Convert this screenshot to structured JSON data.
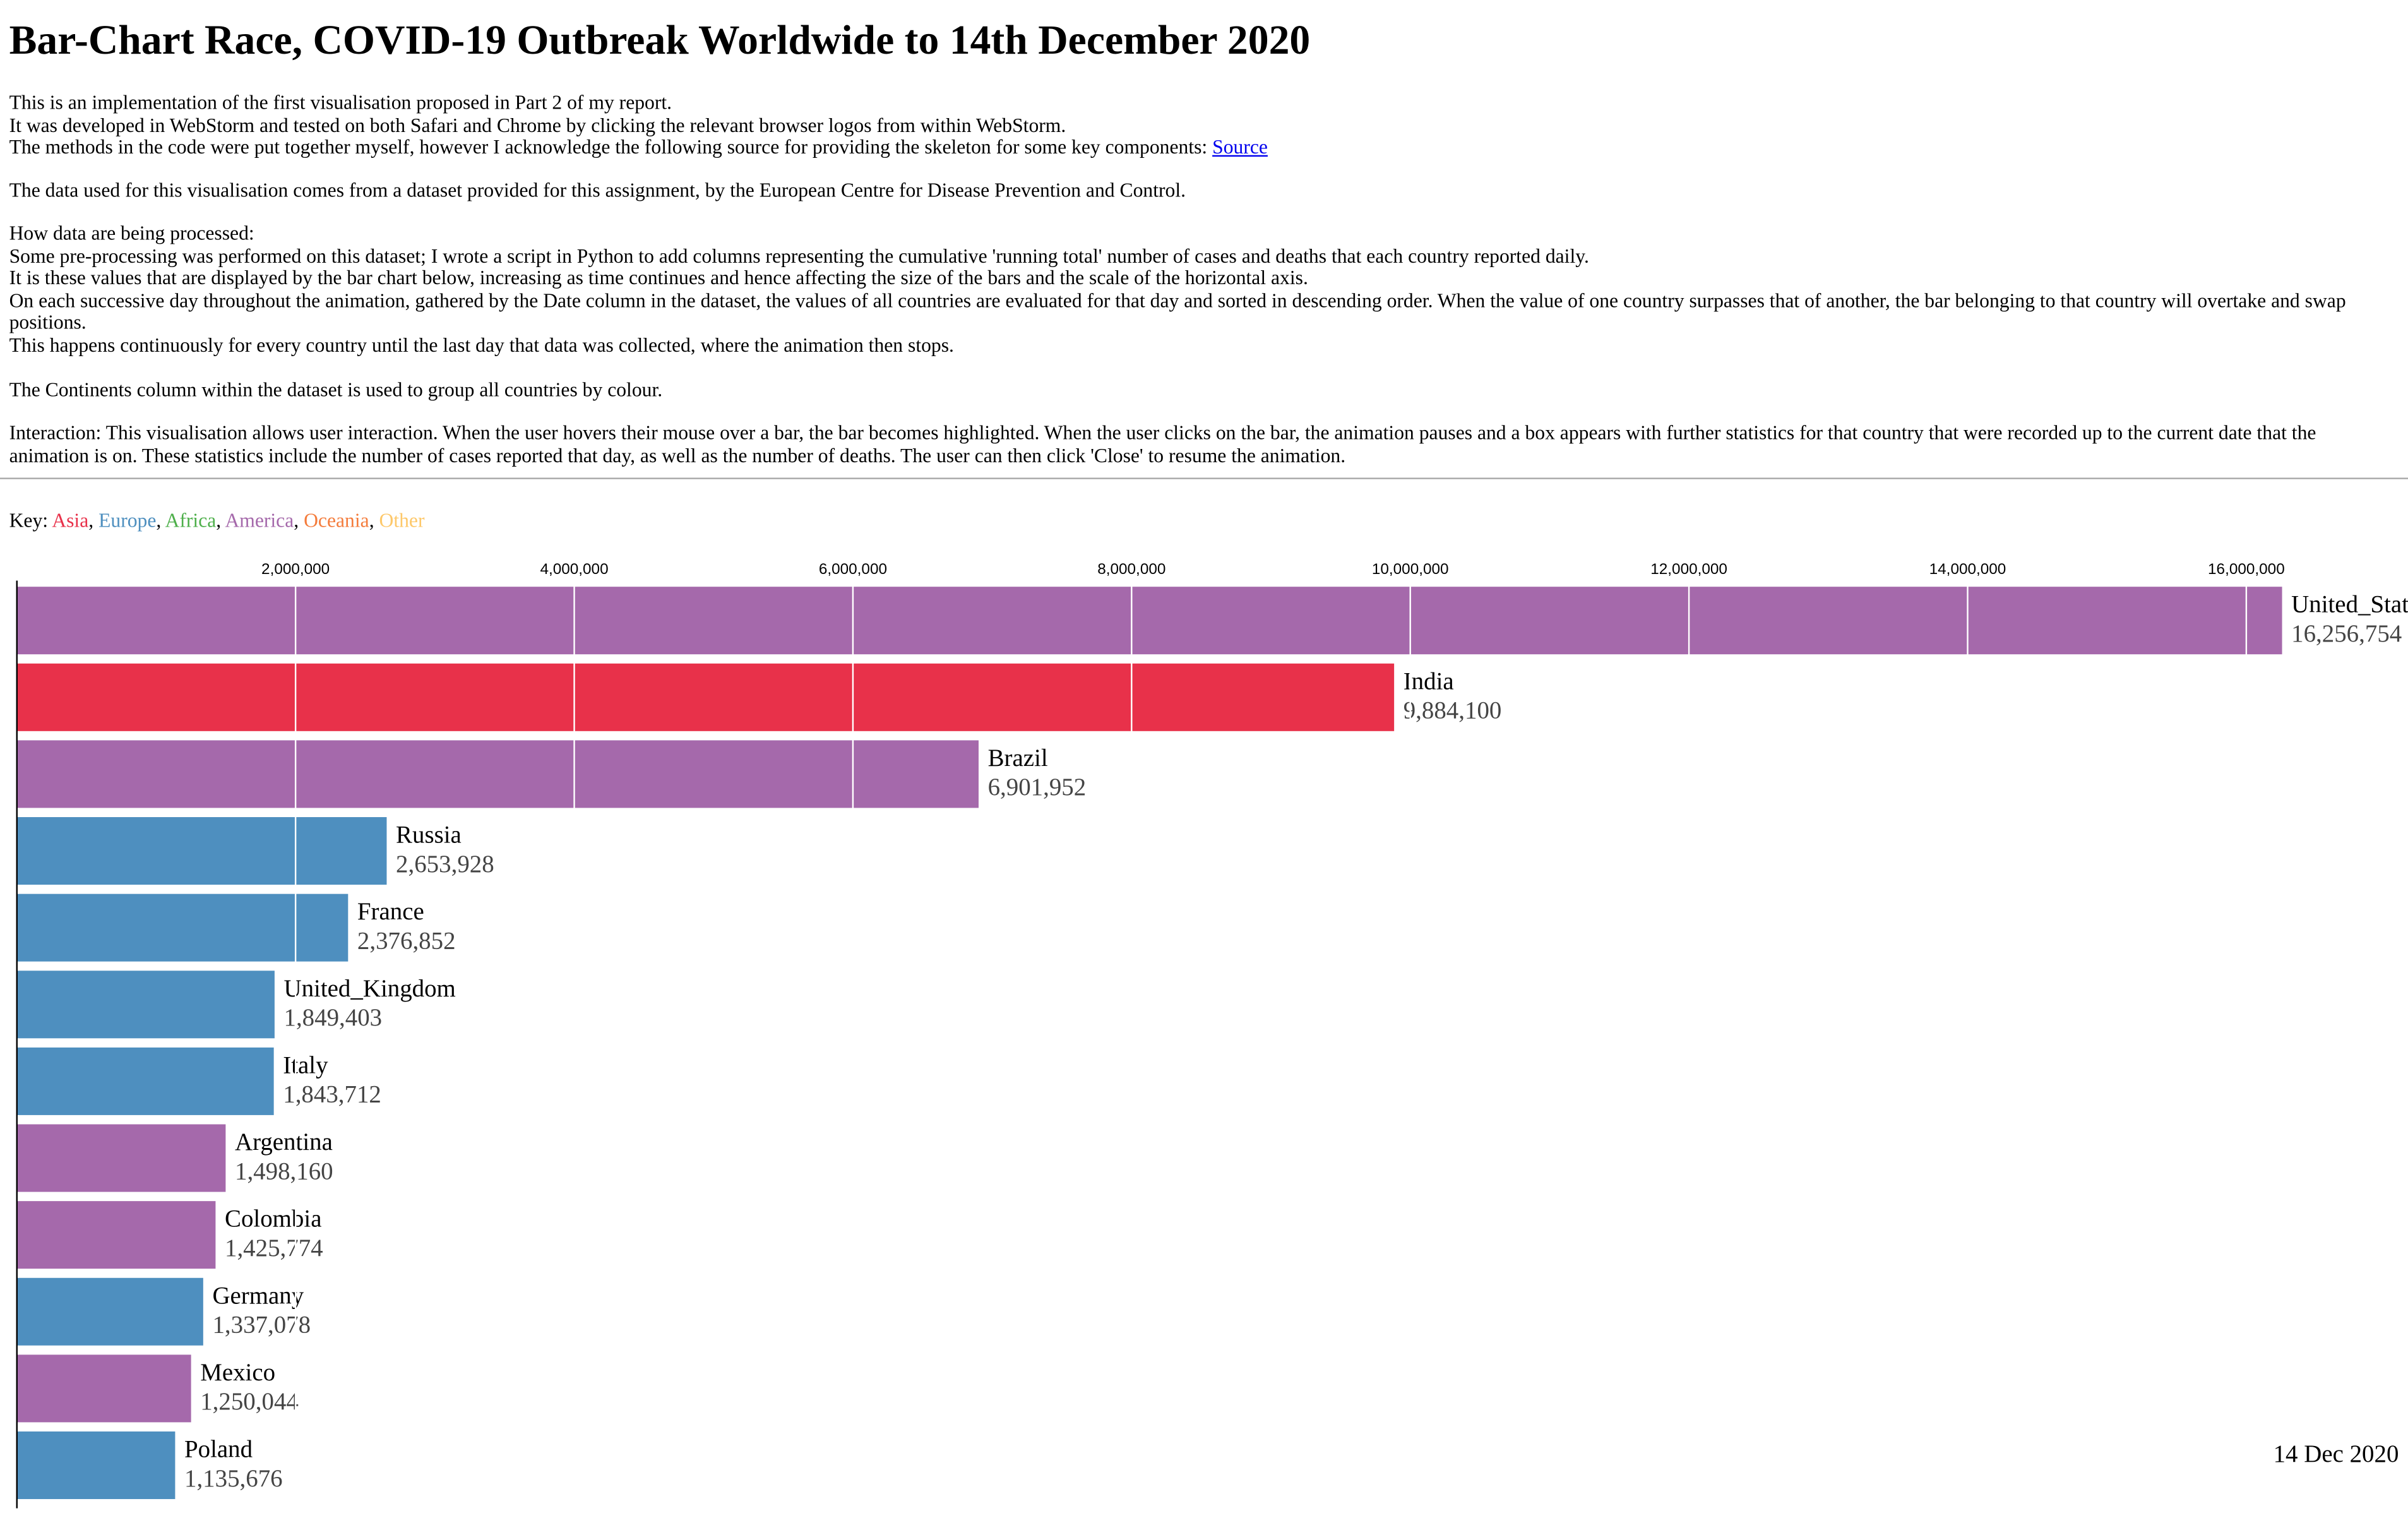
{
  "title": "Bar-Chart Race, COVID-19 Outbreak Worldwide to 14th December 2020",
  "intro": {
    "lines": [
      "This is an implementation of the first visualisation proposed in Part 2 of my report.",
      "It was developed in WebStorm and tested on both Safari and Chrome by clicking the relevant browser logos from within WebStorm.",
      "The methods in the code were put together myself, however I acknowledge the following source for providing the skeleton for some key components:"
    ],
    "link": "Source"
  },
  "data_note": "The data used for this visualisation comes from a dataset provided for this assignment, by the European Centre for Disease Prevention and Control.",
  "processing": {
    "lines": [
      "How data are being processed:",
      "Some pre-processing was performed on this dataset; I wrote a script in Python to add columns representing the cumulative 'running total' number of cases and deaths that each country reported daily.",
      "It is these values that are displayed by the bar chart below, increasing as time continues and hence affecting the size of the bars and the scale of the horizontal axis.",
      "On each successive day throughout the animation, gathered by the Date column in the dataset, the values of all countries are evaluated for that day and sorted in descending order. When the value of one country surpasses that of another, the bar belonging to that country will overtake and swap positions.",
      "This happens continuously for every country until the last day that data was collected, where the animation then stops."
    ]
  },
  "continents_note": "The Continents column within the dataset is used to group all countries by colour.",
  "interaction_note": "Interaction: This visualisation allows user interaction. When the user hovers their mouse over a bar, the bar becomes highlighted. When the user clicks on the bar, the animation pauses and a box appears with further statistics for that country that were recorded up to the current date that the animation is on. These statistics include the number of cases reported that day, as well as the number of deaths. The user can then click 'Close' to resume the animation.",
  "key": {
    "label": "Key:",
    "separator": ", ",
    "items": [
      {
        "name": "Asia",
        "color": "#e8314a"
      },
      {
        "name": "Europe",
        "color": "#4e8fbf"
      },
      {
        "name": "Africa",
        "color": "#4daf4a"
      },
      {
        "name": "America",
        "color": "#a569ab"
      },
      {
        "name": "Oceania",
        "color": "#f47c3c"
      },
      {
        "name": "Other",
        "color": "#fdc86a"
      }
    ]
  },
  "chart_data": {
    "type": "bar",
    "orientation": "horizontal",
    "categories": [
      "United_States_of_America",
      "India",
      "Brazil",
      "Russia",
      "France",
      "United_Kingdom",
      "Italy",
      "Argentina",
      "Colombia",
      "Germany",
      "Mexico",
      "Poland"
    ],
    "values": [
      16256754,
      9884100,
      6901952,
      2653928,
      2376852,
      1849403,
      1843712,
      1498160,
      1425774,
      1337078,
      1250044,
      1135676
    ],
    "value_labels": [
      "16,256,754",
      "9,884,100",
      "6,901,952",
      "2,653,928",
      "2,376,852",
      "1,849,403",
      "1,843,712",
      "1,498,160",
      "1,425,774",
      "1,337,078",
      "1,250,044",
      "1,135,676"
    ],
    "colors": [
      "#a569ab",
      "#e8314a",
      "#a569ab",
      "#4e8fbf",
      "#4e8fbf",
      "#4e8fbf",
      "#4e8fbf",
      "#a569ab",
      "#a569ab",
      "#4e8fbf",
      "#a569ab",
      "#4e8fbf"
    ],
    "xlim": [
      0,
      16256754
    ],
    "xticks": [
      {
        "value": 2000000,
        "label": "2,000,000"
      },
      {
        "value": 4000000,
        "label": "4,000,000"
      },
      {
        "value": 6000000,
        "label": "6,000,000"
      },
      {
        "value": 8000000,
        "label": "8,000,000"
      },
      {
        "value": 10000000,
        "label": "10,000,000"
      },
      {
        "value": 12000000,
        "label": "12,000,000"
      },
      {
        "value": 14000000,
        "label": "14,000,000"
      },
      {
        "value": 16000000,
        "label": "16,000,000"
      }
    ],
    "grid": true,
    "date": "14 Dec 2020"
  }
}
